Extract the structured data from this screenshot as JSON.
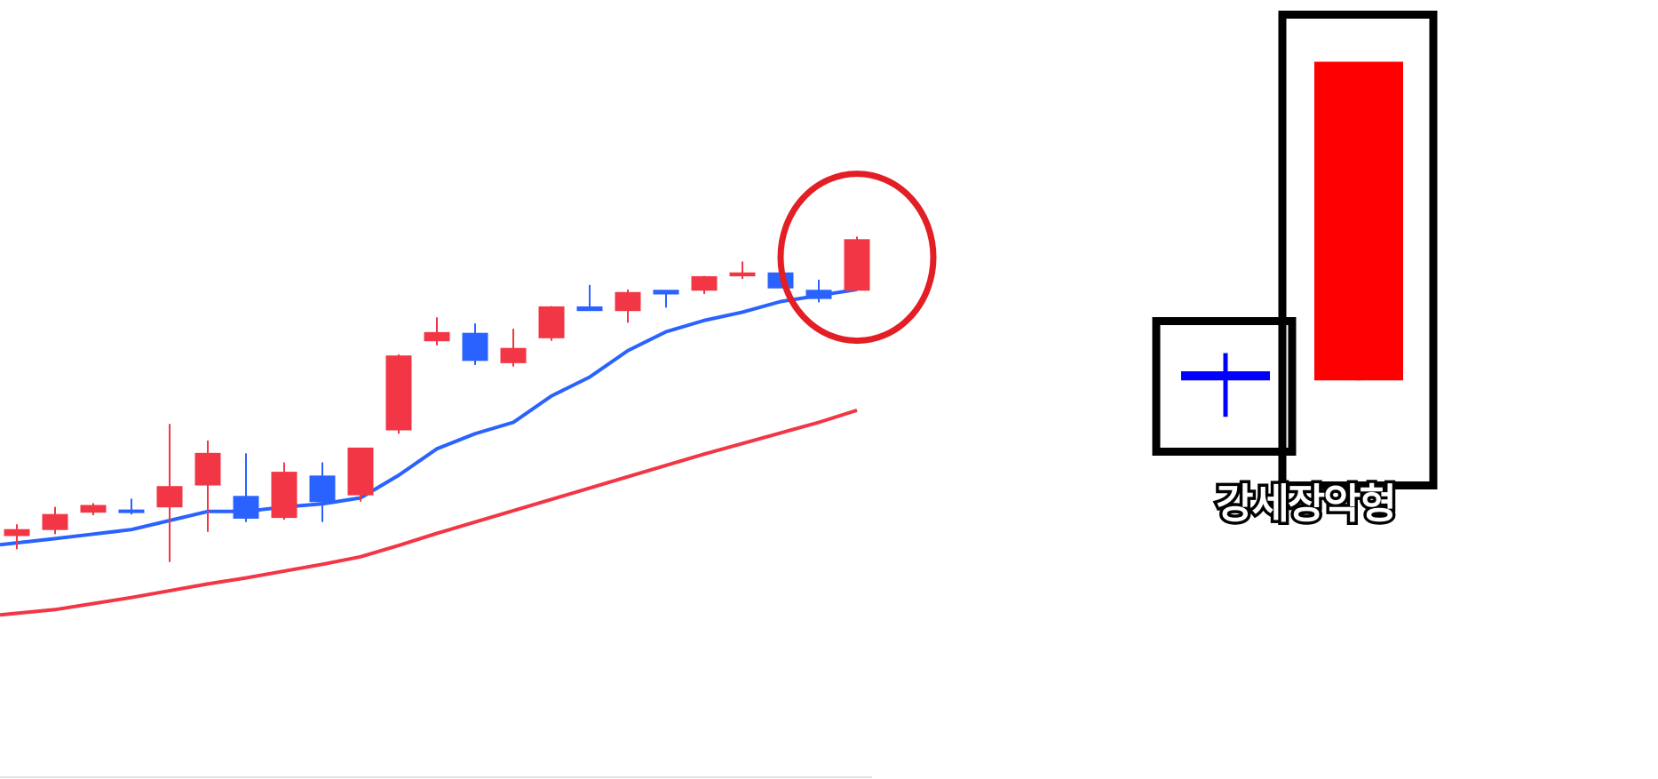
{
  "chart_data": {
    "type": "candlestick",
    "title": "",
    "xlabel": "",
    "ylabel": "",
    "ylim": [
      0,
      100
    ],
    "grid": false,
    "colors": {
      "up": "#f23645",
      "down": "#2962ff",
      "ma_short": "#2962ff",
      "ma_long": "#f23645",
      "highlight": "#e31e24"
    },
    "candles": [
      {
        "o": 22.0,
        "h": 23.5,
        "l": 20.2,
        "c": 22.8
      },
      {
        "o": 22.8,
        "h": 25.8,
        "l": 22.2,
        "c": 24.8
      },
      {
        "o": 25.1,
        "h": 26.3,
        "l": 24.7,
        "c": 26.0
      },
      {
        "o": 25.4,
        "h": 26.9,
        "l": 24.8,
        "c": 25.3
      },
      {
        "o": 25.8,
        "h": 36.8,
        "l": 18.5,
        "c": 28.5
      },
      {
        "o": 28.7,
        "h": 34.6,
        "l": 22.5,
        "c": 32.9
      },
      {
        "o": 27.2,
        "h": 32.9,
        "l": 23.8,
        "c": 24.3
      },
      {
        "o": 24.4,
        "h": 31.7,
        "l": 24.1,
        "c": 30.4
      },
      {
        "o": 29.9,
        "h": 31.7,
        "l": 23.8,
        "c": 26.5
      },
      {
        "o": 27.4,
        "h": 33.5,
        "l": 26.5,
        "c": 33.6
      },
      {
        "o": 36.0,
        "h": 46.0,
        "l": 35.5,
        "c": 45.8
      },
      {
        "o": 47.8,
        "h": 50.9,
        "l": 47.2,
        "c": 48.9
      },
      {
        "o": 48.8,
        "h": 50.1,
        "l": 44.6,
        "c": 45.2
      },
      {
        "o": 44.9,
        "h": 49.4,
        "l": 44.4,
        "c": 46.8
      },
      {
        "o": 48.2,
        "h": 52.4,
        "l": 47.8,
        "c": 52.3
      },
      {
        "o": 52.3,
        "h": 55.2,
        "l": 51.8,
        "c": 51.8
      },
      {
        "o": 51.8,
        "h": 54.6,
        "l": 50.2,
        "c": 54.2
      },
      {
        "o": 54.5,
        "h": 54.5,
        "l": 52.2,
        "c": 54.0
      },
      {
        "o": 54.5,
        "h": 56.4,
        "l": 54.0,
        "c": 56.3
      },
      {
        "o": 56.4,
        "h": 58.3,
        "l": 56.0,
        "c": 56.8
      },
      {
        "o": 56.8,
        "h": 57.6,
        "l": 54.8,
        "c": 54.8
      },
      {
        "o": 54.5,
        "h": 55.9,
        "l": 52.9,
        "c": 53.4
      },
      {
        "o": 54.5,
        "h": 61.6,
        "l": 54.5,
        "c": 61.2
      }
    ],
    "ma_short": [
      20.8,
      21.6,
      22.2,
      22.8,
      24.0,
      25.2,
      25.2,
      25.8,
      26.2,
      27.0,
      30.0,
      33.5,
      35.5,
      37.0,
      40.5,
      43.0,
      46.5,
      49.0,
      50.5,
      51.6,
      53.0,
      53.8,
      54.6
    ],
    "ma_long": [
      11.5,
      12.2,
      13.0,
      13.8,
      14.7,
      15.6,
      16.4,
      17.3,
      18.2,
      19.2,
      20.7,
      22.3,
      23.8,
      25.3,
      26.8,
      28.3,
      29.8,
      31.3,
      32.8,
      34.2,
      35.6,
      37.0,
      38.6
    ],
    "highlight_index": 22
  },
  "pattern": {
    "label": "강세장악형",
    "candles": [
      {
        "o": 80.0,
        "h": 90.0,
        "l": 55.0,
        "c": 75.0,
        "color": "#0000ff"
      },
      {
        "o": 75.0,
        "h": 250.0,
        "l": 75.0,
        "c": 250.0,
        "color": "#ff0000"
      }
    ],
    "box_color": "#000000"
  }
}
